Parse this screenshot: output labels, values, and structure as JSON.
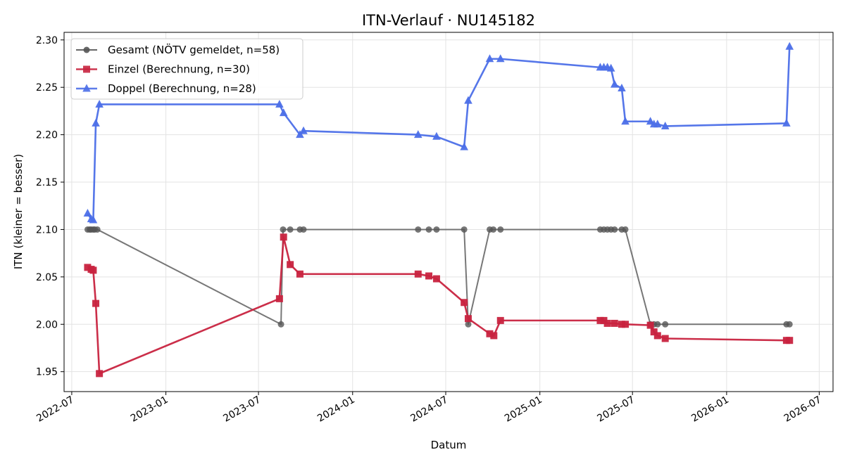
{
  "chart_data": {
    "type": "line",
    "title": "ITN-Verlauf · NU145182",
    "xlabel": "Datum",
    "ylabel": "ITN  (kleiner = besser)",
    "xlim": [
      "2022-06-16",
      "2026-07-28"
    ],
    "ylim": [
      1.929,
      2.308
    ],
    "x_ticks": [
      "2022-07",
      "2023-01",
      "2023-07",
      "2024-01",
      "2024-07",
      "2025-01",
      "2025-07",
      "2026-01",
      "2026-07"
    ],
    "y_ticks": [
      "1.95",
      "2.00",
      "2.05",
      "2.10",
      "2.15",
      "2.20",
      "2.25",
      "2.30"
    ],
    "grid": true,
    "legend_position": "upper-left",
    "series": [
      {
        "name": "Gesamt (NÖTV gemeldet, n=58)",
        "color": "#555555",
        "marker": "circle",
        "points": [
          [
            "2022-08-01",
            2.1
          ],
          [
            "2022-08-05",
            2.1
          ],
          [
            "2022-08-08",
            2.1
          ],
          [
            "2022-08-12",
            2.1
          ],
          [
            "2022-08-15",
            2.1
          ],
          [
            "2022-08-20",
            2.1
          ],
          [
            "2023-08-14",
            2.0
          ],
          [
            "2023-08-18",
            2.1
          ],
          [
            "2023-09-01",
            2.1
          ],
          [
            "2023-09-20",
            2.1
          ],
          [
            "2023-09-27",
            2.1
          ],
          [
            "2024-05-08",
            2.1
          ],
          [
            "2024-05-29",
            2.1
          ],
          [
            "2024-06-13",
            2.1
          ],
          [
            "2024-08-06",
            2.1
          ],
          [
            "2024-08-14",
            2.0
          ],
          [
            "2024-09-25",
            2.1
          ],
          [
            "2024-10-02",
            2.1
          ],
          [
            "2024-10-16",
            2.1
          ],
          [
            "2025-04-29",
            2.1
          ],
          [
            "2025-05-06",
            2.1
          ],
          [
            "2025-05-13",
            2.1
          ],
          [
            "2025-05-20",
            2.1
          ],
          [
            "2025-05-27",
            2.1
          ],
          [
            "2025-06-10",
            2.1
          ],
          [
            "2025-06-17",
            2.1
          ],
          [
            "2025-08-05",
            2.0
          ],
          [
            "2025-08-12",
            2.0
          ],
          [
            "2025-08-19",
            2.0
          ],
          [
            "2025-09-03",
            2.0
          ],
          [
            "2026-04-28",
            2.0
          ],
          [
            "2026-05-04",
            2.0
          ]
        ]
      },
      {
        "name": "Einzel (Berechnung, n=30)",
        "color": "#c8233f",
        "marker": "square",
        "points": [
          [
            "2022-08-01",
            2.06
          ],
          [
            "2022-08-08",
            2.058
          ],
          [
            "2022-08-12",
            2.057
          ],
          [
            "2022-08-17",
            2.022
          ],
          [
            "2022-08-24",
            1.948
          ],
          [
            "2023-08-11",
            2.027
          ],
          [
            "2023-08-19",
            2.092
          ],
          [
            "2023-09-01",
            2.063
          ],
          [
            "2023-09-20",
            2.053
          ],
          [
            "2024-05-08",
            2.053
          ],
          [
            "2024-05-29",
            2.051
          ],
          [
            "2024-06-13",
            2.048
          ],
          [
            "2024-08-06",
            2.023
          ],
          [
            "2024-08-14",
            2.006
          ],
          [
            "2024-09-25",
            1.99
          ],
          [
            "2024-10-03",
            1.988
          ],
          [
            "2024-10-16",
            2.004
          ],
          [
            "2025-04-29",
            2.004
          ],
          [
            "2025-05-06",
            2.004
          ],
          [
            "2025-05-13",
            2.001
          ],
          [
            "2025-05-27",
            2.001
          ],
          [
            "2025-06-10",
            2.0
          ],
          [
            "2025-06-17",
            2.0
          ],
          [
            "2025-08-05",
            1.999
          ],
          [
            "2025-08-12",
            1.992
          ],
          [
            "2025-08-19",
            1.988
          ],
          [
            "2025-09-03",
            1.985
          ],
          [
            "2026-04-28",
            1.983
          ],
          [
            "2026-05-04",
            1.983
          ]
        ]
      },
      {
        "name": "Doppel (Berechnung, n=28)",
        "color": "#4c6fe8",
        "marker": "triangle",
        "points": [
          [
            "2022-08-01",
            2.117
          ],
          [
            "2022-08-08",
            2.111
          ],
          [
            "2022-08-12",
            2.11
          ],
          [
            "2022-08-17",
            2.212
          ],
          [
            "2022-08-24",
            2.232
          ],
          [
            "2023-08-11",
            2.232
          ],
          [
            "2023-08-19",
            2.223
          ],
          [
            "2023-09-20",
            2.2
          ],
          [
            "2023-09-27",
            2.204
          ],
          [
            "2024-05-08",
            2.2
          ],
          [
            "2024-06-13",
            2.198
          ],
          [
            "2024-08-06",
            2.187
          ],
          [
            "2024-08-14",
            2.236
          ],
          [
            "2024-09-25",
            2.28
          ],
          [
            "2024-10-16",
            2.28
          ],
          [
            "2025-04-29",
            2.271
          ],
          [
            "2025-05-06",
            2.271
          ],
          [
            "2025-05-13",
            2.271
          ],
          [
            "2025-05-20",
            2.27
          ],
          [
            "2025-05-27",
            2.253
          ],
          [
            "2025-06-10",
            2.249
          ],
          [
            "2025-06-17",
            2.214
          ],
          [
            "2025-08-05",
            2.214
          ],
          [
            "2025-08-12",
            2.211
          ],
          [
            "2025-08-19",
            2.211
          ],
          [
            "2025-09-03",
            2.209
          ],
          [
            "2026-04-28",
            2.212
          ],
          [
            "2026-05-04",
            2.293
          ]
        ]
      }
    ]
  }
}
